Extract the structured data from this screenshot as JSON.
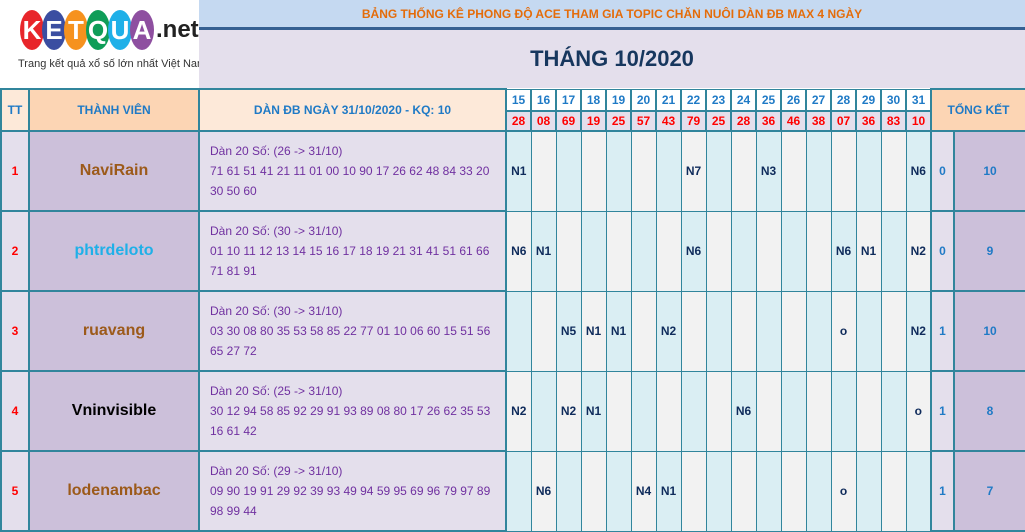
{
  "logo": {
    "letters": [
      "K",
      "E",
      "T",
      "Q",
      "U",
      "A"
    ],
    "suffix": ".net",
    "tagline": "Trang kết quả xổ số lớn nhất Việt Nam"
  },
  "title": "BẢNG THỐNG KÊ PHONG ĐỘ ACE THAM GIA TOPIC CHĂN NUÔI DÀN ĐB MAX 4 NGÀY",
  "month": "THÁNG 10/2020",
  "headers": {
    "tt": "TT",
    "member": "THÀNH VIÊN",
    "dan": "DÀN ĐB NGÀY 31/10/2020 - KQ: 10",
    "summary": "TỔNG KẾT"
  },
  "days": [
    "15",
    "16",
    "17",
    "18",
    "19",
    "20",
    "21",
    "22",
    "23",
    "24",
    "25",
    "26",
    "27",
    "28",
    "29",
    "30",
    "31"
  ],
  "results": [
    "28",
    "08",
    "69",
    "19",
    "25",
    "57",
    "43",
    "79",
    "25",
    "28",
    "36",
    "46",
    "38",
    "07",
    "36",
    "83",
    "10"
  ],
  "colors": {
    "logo_balls": [
      "#e8262b",
      "#3b4ea1",
      "#f6921e",
      "#0f9d58",
      "#1fb0e8",
      "#8e4fa0"
    ],
    "border": "#31859c",
    "title_text": "#e46c0a"
  },
  "rows": [
    {
      "tt": "1",
      "name": "NaviRain",
      "name_color": "#9c5a1a",
      "dan_label": "Dàn 20 Số: (26 -> 31/10)",
      "dan_numbers": "71 61 51 41 21 11 01 00 10 90 17 26 62 48 84 33 20 30 50 60",
      "cells": {
        "15": "N1",
        "22": "N7",
        "25": "N3",
        "31": "N6"
      },
      "tk1": "0",
      "tk2": "10"
    },
    {
      "tt": "2",
      "name": "phtrdeloto",
      "name_color": "#1fb0e8",
      "dan_label": "Dàn 20 Số: (30 -> 31/10)",
      "dan_numbers": "01 10 11 12 13 14 15 16 17 18 19 21 31 41 51 61 66 71 81 91",
      "cells": {
        "15": "N6",
        "16": "N1",
        "22": "N6",
        "28": "N6",
        "29": "N1",
        "31": "N2"
      },
      "tk1": "0",
      "tk2": "9"
    },
    {
      "tt": "3",
      "name": "ruavang",
      "name_color": "#9c5a1a",
      "dan_label": "Dàn 20 Số: (30 -> 31/10)",
      "dan_numbers": "03 30 08 80 35 53 58 85 22 77 01 10 06 60 15 51 56 65 27 72",
      "cells": {
        "17": "N5",
        "18": "N1",
        "19": "N1",
        "21": "N2",
        "28": "o",
        "31": "N2"
      },
      "tk1": "1",
      "tk2": "10"
    },
    {
      "tt": "4",
      "name": "Vninvisible",
      "name_color": "#000000",
      "dan_label": "Dàn 20 Số: (25 -> 31/10)",
      "dan_numbers": "30 12 94 58 85 92 29 91 93 89 08 80 17 26 62 35 53 16 61 42",
      "cells": {
        "15": "N2",
        "17": "N2",
        "18": "N1",
        "24": "N6",
        "31": "o"
      },
      "tk1": "1",
      "tk2": "8"
    },
    {
      "tt": "5",
      "name": "lodenambac",
      "name_color": "#9c5a1a",
      "dan_label": "Dàn 20 Số: (29 -> 31/10)",
      "dan_numbers": "09 90 19 91 29 92 39 93 49 94 59 95 69 96 79 97 89 98 99 44",
      "cells": {
        "16": "N6",
        "20": "N4",
        "21": "N1",
        "28": "o"
      },
      "tk1": "1",
      "tk2": "7"
    }
  ]
}
